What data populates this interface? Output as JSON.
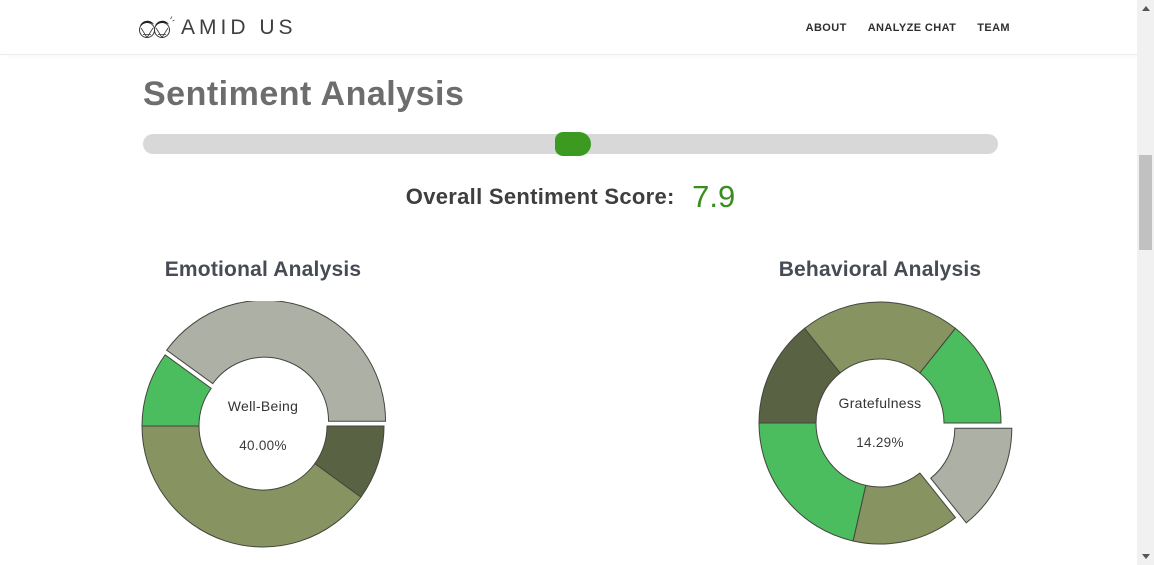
{
  "header": {
    "logo": "AMID US",
    "nav": [
      {
        "label": "ABOUT"
      },
      {
        "label": "ANALYZE CHAT"
      },
      {
        "label": "TEAM"
      }
    ]
  },
  "page": {
    "title": "Sentiment Analysis",
    "score": {
      "label": "Overall Sentiment Score:",
      "value": "7.9"
    },
    "slider": {
      "thumb_position_pct": 48.2
    }
  },
  "colors": {
    "accent_green": "#3c8d1f",
    "slider_thumb_green": "#3d9a20",
    "slider_track_gray": "#d8d8d8",
    "segment_gray": "#adb0a5",
    "segment_sage": "#879360",
    "segment_green": "#4bbd5e",
    "segment_dark_olive": "#5a6244"
  },
  "chart_data": [
    {
      "type": "pie",
      "variant": "doughnut",
      "title": "Emotional Analysis",
      "center_label": "Well-Being",
      "center_value": "40.00%",
      "rotation_deg": -54,
      "segments": [
        {
          "value": 40,
          "color": "#adb0a5",
          "offset": 5
        },
        {
          "value": 10,
          "color": "#5a6244"
        },
        {
          "value": 40,
          "color": "#879360"
        },
        {
          "value": 10,
          "color": "#4bbd5e"
        }
      ]
    },
    {
      "type": "pie",
      "variant": "doughnut",
      "title": "Behavioral Analysis",
      "center_label": "Gratefulness",
      "center_value": "14.29%",
      "rotation_deg": -38.57,
      "segments": [
        {
          "value": 21.43,
          "color": "#879360"
        },
        {
          "value": 14.29,
          "color": "#4bbd5e"
        },
        {
          "value": 14.29,
          "color": "#adb0a5",
          "offset": 12
        },
        {
          "value": 14.29,
          "color": "#879360"
        },
        {
          "value": 21.43,
          "color": "#4bbd5e"
        },
        {
          "value": 14.29,
          "color": "#5a6244"
        }
      ]
    }
  ]
}
